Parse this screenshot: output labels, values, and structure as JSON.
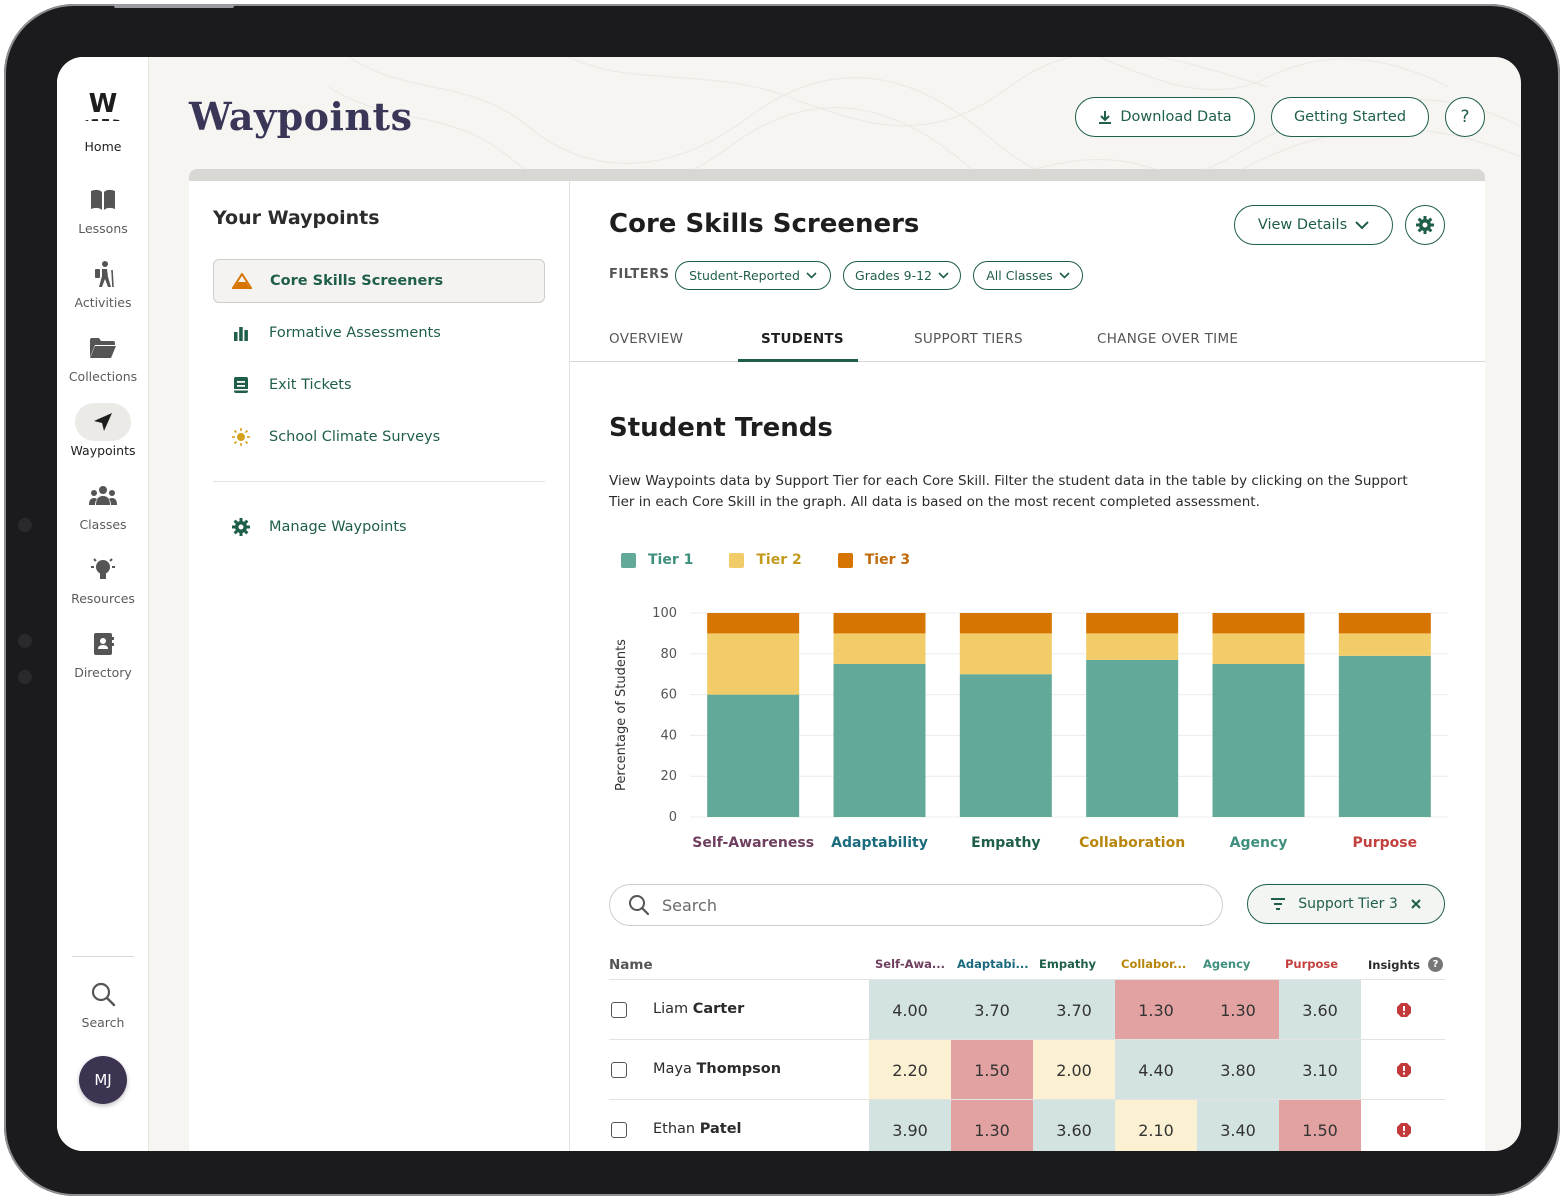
{
  "app": {
    "title": "Waypoints",
    "logo_letter": "W"
  },
  "rail": {
    "items": [
      {
        "label": "Home",
        "icon": "waypoints-logo-icon"
      },
      {
        "label": "Lessons",
        "icon": "book-icon"
      },
      {
        "label": "Activities",
        "icon": "hiker-icon"
      },
      {
        "label": "Collections",
        "icon": "folder-icon"
      },
      {
        "label": "Waypoints",
        "icon": "navigation-arrow-icon",
        "active": true
      },
      {
        "label": "Classes",
        "icon": "people-icon"
      },
      {
        "label": "Resources",
        "icon": "lightbulb-icon"
      },
      {
        "label": "Directory",
        "icon": "contact-book-icon"
      }
    ],
    "search_label": "Search",
    "avatar_initials": "MJ"
  },
  "header": {
    "download_label": "Download Data",
    "getting_started_label": "Getting Started",
    "help_label": "?"
  },
  "left_panel": {
    "title": "Your Waypoints",
    "items": [
      {
        "label": "Core Skills Screeners",
        "icon": "mountain-icon",
        "active": true
      },
      {
        "label": "Formative Assessments",
        "icon": "bar-chart-icon"
      },
      {
        "label": "Exit Tickets",
        "icon": "ticket-icon"
      },
      {
        "label": "School Climate Surveys",
        "icon": "sun-icon"
      }
    ],
    "manage_label": "Manage Waypoints"
  },
  "main": {
    "title": "Core Skills Screeners",
    "view_details_label": "View Details",
    "filters_label": "FILTERS",
    "filters": [
      "Student-Reported",
      "Grades 9-12",
      "All Classes"
    ],
    "tabs": [
      "OVERVIEW",
      "STUDENTS",
      "SUPPORT TIERS",
      "CHANGE OVER TIME"
    ],
    "active_tab": "STUDENTS",
    "section_title": "Student Trends",
    "section_desc": "View Waypoints data by Support Tier for each Core Skill. Filter the student data in the table by clicking on the Support Tier in each Core Skill in the graph. All data is based on the most recent completed assessment.",
    "search_placeholder": "Search",
    "tier_filter_chip": "Support Tier 3"
  },
  "colors": {
    "accent": "#1f5e49",
    "tier1": "#63a99a",
    "tier2": "#f2cc69",
    "tier3": "#d77503",
    "self_awareness": "#6e3f5e",
    "adaptability": "#1a6b7d",
    "empathy": "#1f5e49",
    "collaboration": "#b8860b",
    "agency": "#3f8f7e",
    "purpose": "#c2413f"
  },
  "chart_data": {
    "type": "bar",
    "stacked": true,
    "categories": [
      "Self-Awareness",
      "Adaptability",
      "Empathy",
      "Collaboration",
      "Agency",
      "Purpose"
    ],
    "series": [
      {
        "name": "Tier 1",
        "values": [
          60,
          75,
          70,
          77,
          75,
          79
        ]
      },
      {
        "name": "Tier 2",
        "values": [
          30,
          15,
          20,
          13,
          15,
          11
        ]
      },
      {
        "name": "Tier 3",
        "values": [
          10,
          10,
          10,
          10,
          10,
          10
        ]
      }
    ],
    "ylabel": "Percentage of Students",
    "ylim": [
      0,
      100
    ],
    "yticks": [
      0,
      20,
      40,
      60,
      80,
      100
    ],
    "grid": true,
    "legend": "top-left"
  },
  "table": {
    "headers": {
      "name": "Name",
      "skills": [
        "Self-Awa...",
        "Adaptabi...",
        "Empathy",
        "Collabor...",
        "Agency",
        "Purpose"
      ],
      "insights": "Insights"
    },
    "rows": [
      {
        "first": "Liam",
        "last": "Carter",
        "values": [
          "4.00",
          "3.70",
          "3.70",
          "1.30",
          "1.30",
          "3.60"
        ],
        "tiers": [
          1,
          1,
          1,
          3,
          3,
          1
        ]
      },
      {
        "first": "Maya",
        "last": "Thompson",
        "values": [
          "2.20",
          "1.50",
          "2.00",
          "4.40",
          "3.80",
          "3.10"
        ],
        "tiers": [
          2,
          3,
          2,
          1,
          1,
          1
        ]
      },
      {
        "first": "Ethan",
        "last": "Patel",
        "values": [
          "3.90",
          "1.30",
          "3.60",
          "2.10",
          "3.40",
          "1.50"
        ],
        "tiers": [
          1,
          3,
          1,
          2,
          1,
          3
        ]
      }
    ]
  }
}
